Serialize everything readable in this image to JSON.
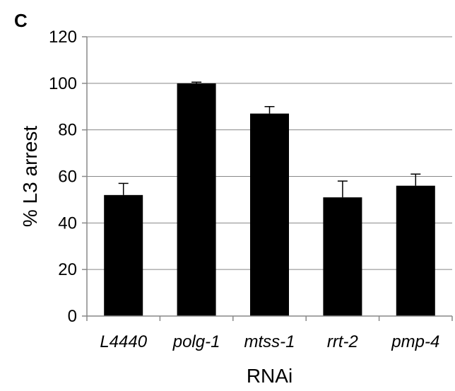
{
  "panel_label": "C",
  "chart_data": {
    "type": "bar",
    "categories": [
      "L4440",
      "polg-1",
      "mtss-1",
      "rrt-2",
      "pmp-4"
    ],
    "values": [
      52,
      100,
      87,
      51,
      56
    ],
    "error_upper": [
      5,
      0.5,
      3,
      7,
      5
    ],
    "xlabel": "RNAi",
    "ylabel": "% L3 arrest",
    "ylim": [
      0,
      120
    ],
    "yticks": [
      0,
      20,
      40,
      60,
      80,
      100,
      120
    ],
    "grid": true,
    "legend": "none",
    "bar_color": "#000000",
    "grid_color": "#888888"
  }
}
